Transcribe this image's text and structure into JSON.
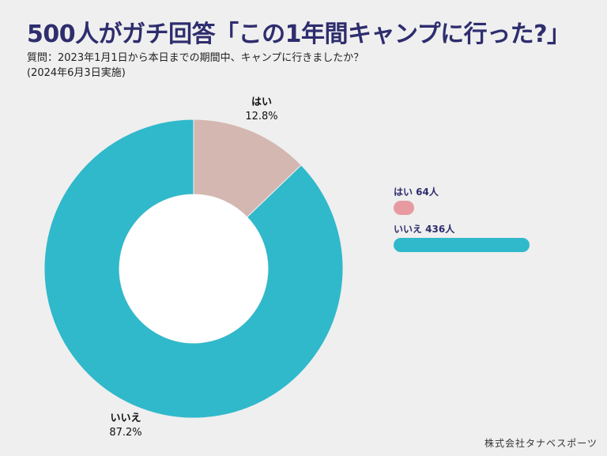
{
  "header": {
    "title": "500人がガチ回答「この1年間キャンプに行った?」",
    "question": "質問：2023年1月1日から本日までの期間中、キャンプに行きましたか？",
    "date": "(2024年6月3日実施)"
  },
  "chart_data": {
    "type": "pie",
    "labels": [
      "はい",
      "いいえ"
    ],
    "values": [
      12.8,
      87.2
    ],
    "value_labels": [
      "12.8%",
      "87.2%"
    ],
    "counts": [
      64,
      436
    ],
    "count_labels": [
      "はい 64人",
      "いいえ 436人"
    ],
    "colors": [
      "#d4b7b1",
      "#30b9cb"
    ],
    "bar_colors": [
      "#e89aa1",
      "#30b9cb"
    ],
    "donut": true
  },
  "footer": {
    "credit": "株式会社タナベスポーツ"
  }
}
